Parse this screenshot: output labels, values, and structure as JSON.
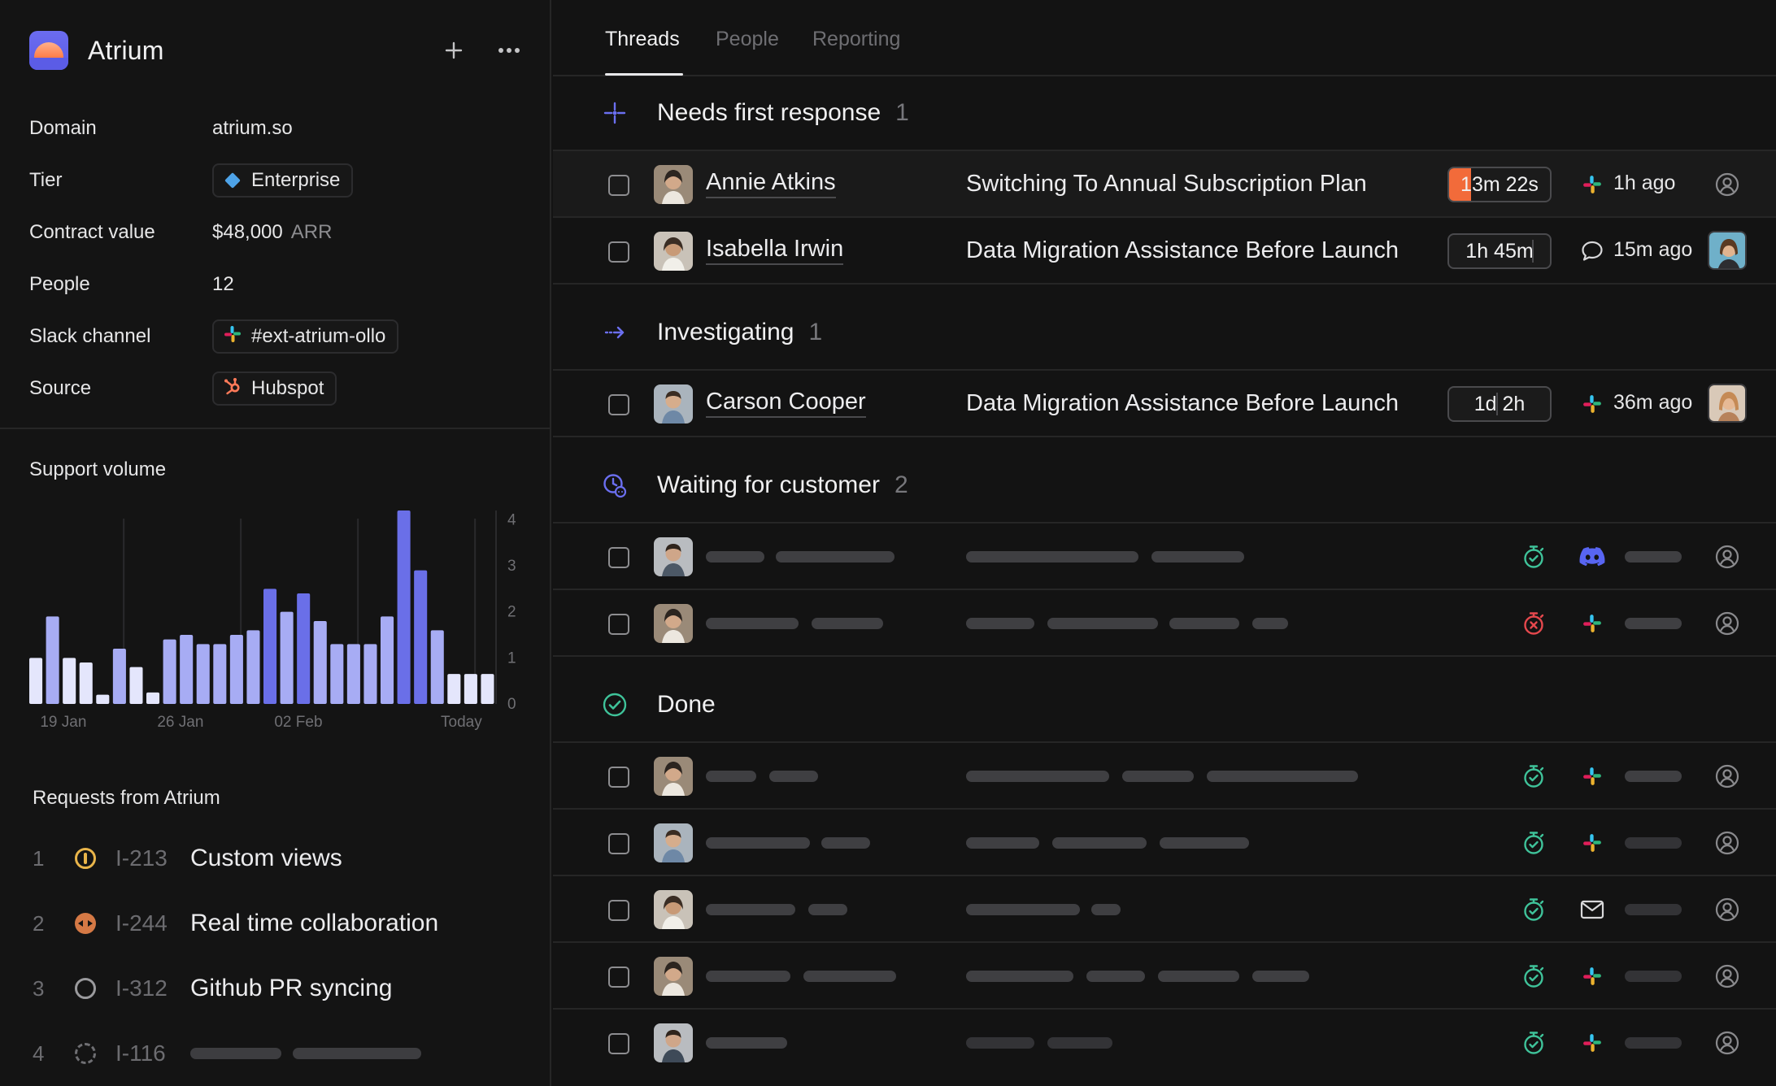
{
  "app": {
    "name": "Atrium",
    "add_icon": "plus-icon",
    "more_icon": "ellipsis-icon"
  },
  "properties": [
    {
      "key": "Domain",
      "value": "atrium.so"
    },
    {
      "key": "Tier",
      "value": "Enterprise",
      "icon": "diamond-icon"
    },
    {
      "key": "Contract value",
      "value": "$48,000",
      "suffix": "ARR"
    },
    {
      "key": "People",
      "value": "12"
    },
    {
      "key": "Slack channel",
      "value": "#ext-atrium-ollo",
      "icon": "slack-icon"
    },
    {
      "key": "Source",
      "value": "Hubspot",
      "icon": "hubspot-icon"
    }
  ],
  "support_volume": {
    "title": "Support volume",
    "chart_data": {
      "type": "bar",
      "values": [
        1,
        1.9,
        1,
        0.9,
        0.2,
        1.2,
        0.8,
        0.25,
        1.4,
        1.5,
        1.3,
        1.3,
        1.5,
        1.6,
        2.5,
        2,
        2.4,
        1.8,
        1.3,
        1.3,
        1.3,
        1.9,
        4.2,
        2.9,
        1.6,
        0.65,
        0.65,
        0.65
      ],
      "xticks": [
        "19 Jan",
        "26 Jan",
        "02 Feb",
        "Today"
      ],
      "yticks": [
        "4",
        "3",
        "2",
        "1",
        "0"
      ],
      "ylim": [
        0,
        4.2
      ],
      "colors": {
        "low": "#e4e6fc",
        "mid": "#a7acf4",
        "high": "#6a6fe8"
      }
    }
  },
  "requests": {
    "title": "Requests from Atrium",
    "items": [
      {
        "num": "1",
        "status": "in-progress",
        "id": "I-213",
        "title": "Custom views"
      },
      {
        "num": "2",
        "status": "in-review",
        "id": "I-244",
        "title": "Real time collaboration"
      },
      {
        "num": "3",
        "status": "todo",
        "id": "I-312",
        "title": "Github PR syncing"
      },
      {
        "num": "4",
        "status": "backlog",
        "id": "I-116",
        "title": ""
      }
    ]
  },
  "tabs": [
    {
      "label": "Threads",
      "active": true
    },
    {
      "label": "People",
      "active": false
    },
    {
      "label": "Reporting",
      "active": false
    }
  ],
  "sections": {
    "needs_first_response": {
      "name": "Needs first response",
      "count": "1"
    },
    "investigating": {
      "name": "Investigating",
      "count": "1"
    },
    "waiting": {
      "name": "Waiting for customer",
      "count": "2"
    },
    "done": {
      "name": "Done",
      "count": ""
    }
  },
  "threads": {
    "annie": {
      "name": "Annie Atkins",
      "subject": "Switching To Annual Subscription Plan",
      "timer": "13m 22s",
      "timer_progress": 0.22,
      "channel": "slack-icon",
      "ago": "1h ago",
      "assignee": "unassigned-user-icon"
    },
    "isabella": {
      "name": "Isabella Irwin",
      "subject": "Data Migration Assistance Before Launch",
      "timer": "1h 45m",
      "channel": "chat-bubble-icon",
      "ago": "15m ago",
      "assignee": "assignee-avatar"
    },
    "carson": {
      "name": "Carson Cooper",
      "subject": "Data Migration Assistance Before Launch",
      "timer": "1d 2h",
      "channel": "slack-icon",
      "ago": "36m ago",
      "assignee": "assignee-avatar"
    }
  },
  "colors": {
    "accent": "#5b5ce6",
    "timer_urgent": "#f26b3a",
    "sla_ok": "#3fc39a",
    "sla_breached": "#e5484d",
    "discord": "#5865f2"
  }
}
